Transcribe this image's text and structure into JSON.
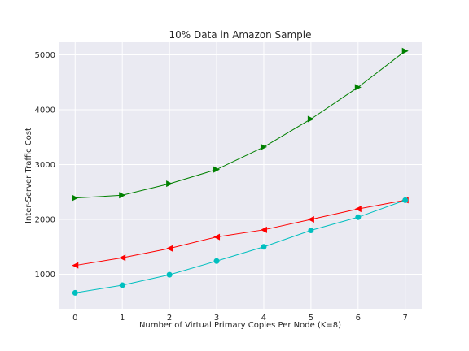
{
  "chart_data": {
    "type": "line",
    "title": "10% Data in Amazon Sample",
    "xlabel": "Number of Virtual Primary Copies Per Node (K=8)",
    "ylabel": "Inter-Server Traffic Cost",
    "x": [
      0,
      1,
      2,
      3,
      4,
      5,
      6,
      7
    ],
    "xlim": [
      -0.35,
      7.35
    ],
    "ylim": [
      370,
      5230
    ],
    "xticks": [
      "0",
      "1",
      "2",
      "3",
      "4",
      "5",
      "6",
      "7"
    ],
    "yticks": [
      1000,
      2000,
      3000,
      4000,
      5000
    ],
    "grid": true,
    "legend": "none",
    "colors": {
      "background": "#eaeaf2",
      "grid": "#ffffff"
    },
    "series": [
      {
        "color": "#008000",
        "marker": "triangle-right",
        "values": [
          2390,
          2440,
          2650,
          2910,
          3320,
          3830,
          4410,
          5070
        ]
      },
      {
        "color": "#ff0000",
        "marker": "triangle-left",
        "values": [
          1160,
          1300,
          1470,
          1680,
          1810,
          2000,
          2190,
          2350
        ]
      },
      {
        "color": "#00bfbf",
        "marker": "circle",
        "values": [
          660,
          800,
          990,
          1240,
          1500,
          1800,
          2040,
          2350
        ]
      }
    ]
  }
}
